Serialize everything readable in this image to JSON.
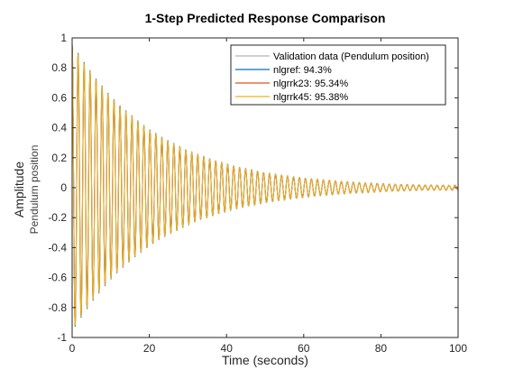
{
  "chart_data": {
    "type": "line",
    "title": "1-Step Predicted Response Comparison",
    "xlabel": "Time (seconds)",
    "ylabel": "Amplitude",
    "ylabel_sub": "Pendulum position",
    "xlim": [
      0,
      100
    ],
    "ylim": [
      -1,
      1
    ],
    "xticks": [
      "0",
      "20",
      "40",
      "60",
      "80",
      "100"
    ],
    "yticks": [
      "-1",
      "-0.8",
      "-0.6",
      "-0.4",
      "-0.2",
      "0",
      "0.2",
      "0.4",
      "0.6",
      "0.8",
      "1"
    ],
    "grid": false,
    "legend_position": "top-right",
    "signal": {
      "amplitude_start": 0.95,
      "decay_per_second": 0.045,
      "period_seconds": 1.55,
      "noise_floor": 0.015,
      "duration": 100
    },
    "series": [
      {
        "name": "Validation data (Pendulum position)",
        "color": "#b3b3b3"
      },
      {
        "name": "nlgref: 94.3%",
        "color": "#0072bd"
      },
      {
        "name": "nlgrrk23: 95.34%",
        "color": "#d95319"
      },
      {
        "name": "nlgrrk45: 95.38%",
        "color": "#edb120"
      }
    ]
  }
}
